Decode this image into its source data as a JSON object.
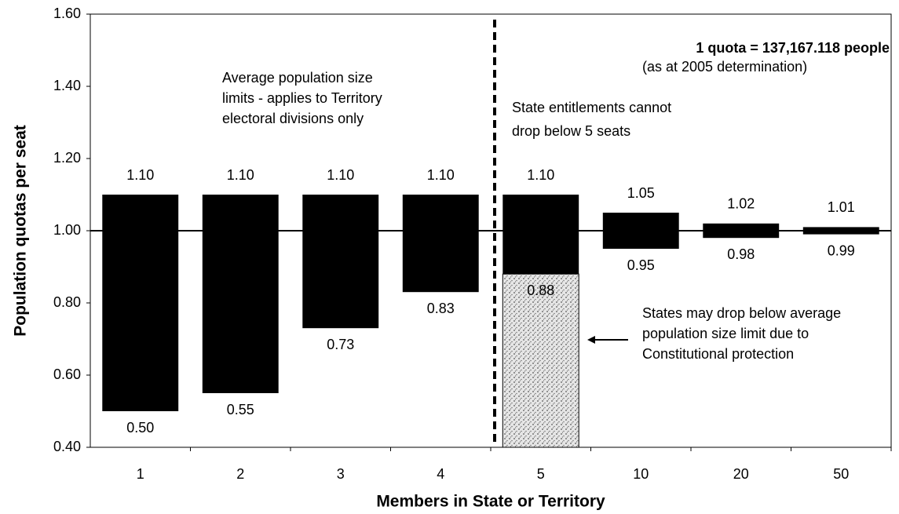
{
  "chart_data": {
    "type": "floating_bar",
    "y_label": "Population quotas per seat",
    "x_label": "Members in State or Territory",
    "categories": [
      "1",
      "2",
      "3",
      "4",
      "5",
      "10",
      "20",
      "50"
    ],
    "series": [
      {
        "color": "#000000",
        "values": [
          1.1,
          1.1,
          1.1,
          1.1,
          1.1,
          1.05,
          1.02,
          1.01
        ],
        "value_labels": [
          "1.10",
          "1.10",
          "1.10",
          "1.10",
          "1.10",
          "1.05",
          "1.02",
          "1.01"
        ]
      },
      {
        "color": "#000000",
        "values": [
          0.5,
          0.55,
          0.73,
          0.83,
          0.88,
          0.95,
          0.98,
          0.99
        ],
        "value_labels": [
          "0.50",
          "0.55",
          "0.73",
          "0.83",
          "0.88",
          "0.95",
          "0.98",
          "0.99"
        ]
      }
    ],
    "below_colors": [
      null,
      null,
      null,
      null,
      "#c8c8c8",
      null,
      null,
      null
    ],
    "reference_line": 1,
    "ylim": [
      0.4,
      1.6
    ],
    "yticks": [
      {
        "value": 0.4,
        "label": "0.40"
      },
      {
        "value": 0.6,
        "label": "0.60"
      },
      {
        "value": 0.8,
        "label": "0.80"
      },
      {
        "value": 1,
        "label": "1.00"
      },
      {
        "value": 1.2,
        "label": "1.20"
      },
      {
        "value": 1.4,
        "label": "1.40"
      },
      {
        "value": 1.6,
        "label": "1.60"
      }
    ],
    "annotations": {
      "territory_note": [
        "Average population size",
        "limits - applies to Territory",
        "electoral divisions only"
      ],
      "state_note": [
        "State entitlements cannot",
        "drop below 5 seats"
      ],
      "quota": "1 quota = 137,167.118 people",
      "quota_note": "(as at 2005 determination)",
      "protection_note": [
        "States may drop below average",
        "population size limit due to",
        "Constitutional protection"
      ]
    }
  }
}
